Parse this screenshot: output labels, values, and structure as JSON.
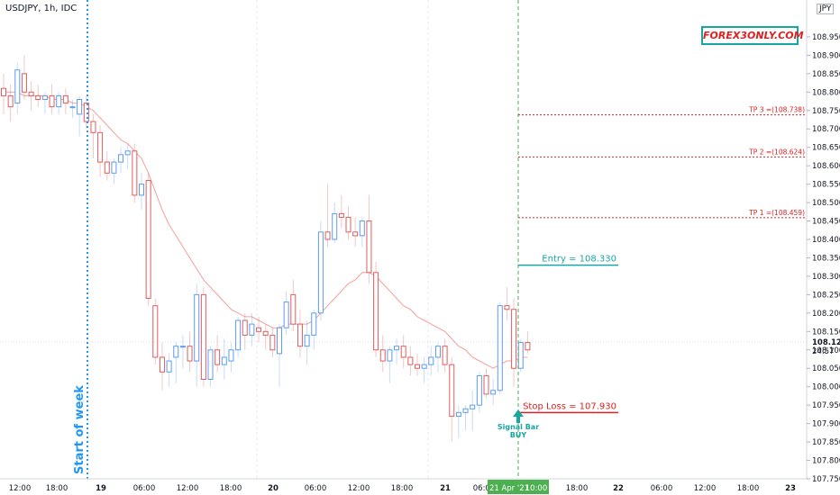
{
  "header": {
    "title": "USDJPY, 1h, IDC",
    "currency": "JPY"
  },
  "brand": "FOREX3ONLY.COM",
  "annotations": {
    "start_of_week": "Start of week",
    "entry": "Entry = 108.330",
    "stop_loss": "Stop Loss = 107.930",
    "tp3": "TP 3 =(108.738)",
    "tp2": "TP 2 =(108.624)",
    "tp1": "TP 1 =(108.459)",
    "signal_line1": "Signal Bar",
    "signal_line2": "BUY",
    "current_price": "108.122",
    "countdown": "24:57",
    "date_marker": "21 Apr '21",
    "time_marker": "10:00"
  },
  "colors": {
    "up": "#5b9cf6",
    "down": "#e05c5c",
    "entry": "#16a7a0",
    "stop": "#e02020",
    "tp": "#e02020",
    "ma": "#f4a09a",
    "start_week": "#2196f3",
    "signal": "#16a7a0"
  },
  "chart_data": {
    "type": "candlestick",
    "symbol": "USDJPY",
    "timeframe": "1h",
    "ylim": [
      107.75,
      109.05
    ],
    "yticks": [
      "108.950",
      "108.900",
      "108.850",
      "108.800",
      "108.750",
      "108.700",
      "108.650",
      "108.600",
      "108.550",
      "108.500",
      "108.450",
      "108.400",
      "108.350",
      "108.300",
      "108.250",
      "108.200",
      "108.150",
      "108.100",
      "108.050",
      "108.000",
      "107.950",
      "107.900",
      "107.850",
      "107.800",
      "107.750"
    ],
    "xticks": [
      "12:00",
      "18:00",
      "19",
      "06:00",
      "12:00",
      "18:00",
      "20",
      "06:00",
      "12:00",
      "18:00",
      "21",
      "06:00",
      "10:00",
      "18:00",
      "22",
      "06:00",
      "12:00",
      "18:00",
      "23"
    ],
    "candles": [
      {
        "o": 108.81,
        "h": 108.85,
        "l": 108.74,
        "c": 108.79
      },
      {
        "o": 108.79,
        "h": 108.82,
        "l": 108.72,
        "c": 108.76
      },
      {
        "o": 108.77,
        "h": 108.88,
        "l": 108.74,
        "c": 108.86
      },
      {
        "o": 108.85,
        "h": 108.9,
        "l": 108.78,
        "c": 108.8
      },
      {
        "o": 108.8,
        "h": 108.83,
        "l": 108.75,
        "c": 108.79
      },
      {
        "o": 108.79,
        "h": 108.82,
        "l": 108.76,
        "c": 108.78
      },
      {
        "o": 108.78,
        "h": 108.8,
        "l": 108.74,
        "c": 108.79
      },
      {
        "o": 108.79,
        "h": 108.82,
        "l": 108.74,
        "c": 108.76
      },
      {
        "o": 108.76,
        "h": 108.8,
        "l": 108.74,
        "c": 108.79
      },
      {
        "o": 108.79,
        "h": 108.81,
        "l": 108.74,
        "c": 108.77
      },
      {
        "o": 108.76,
        "h": 108.78,
        "l": 108.73,
        "c": 108.76
      },
      {
        "o": 108.74,
        "h": 108.79,
        "l": 108.68,
        "c": 108.78
      },
      {
        "o": 108.77,
        "h": 108.79,
        "l": 108.7,
        "c": 108.72
      },
      {
        "o": 108.72,
        "h": 108.74,
        "l": 108.62,
        "c": 108.69
      },
      {
        "o": 108.69,
        "h": 108.71,
        "l": 108.57,
        "c": 108.61
      },
      {
        "o": 108.61,
        "h": 108.64,
        "l": 108.56,
        "c": 108.58
      },
      {
        "o": 108.58,
        "h": 108.62,
        "l": 108.55,
        "c": 108.61
      },
      {
        "o": 108.61,
        "h": 108.65,
        "l": 108.58,
        "c": 108.63
      },
      {
        "o": 108.63,
        "h": 108.66,
        "l": 108.59,
        "c": 108.64
      },
      {
        "o": 108.64,
        "h": 108.66,
        "l": 108.5,
        "c": 108.52
      },
      {
        "o": 108.52,
        "h": 108.58,
        "l": 108.48,
        "c": 108.55
      },
      {
        "o": 108.56,
        "h": 108.58,
        "l": 108.22,
        "c": 108.24
      },
      {
        "o": 108.22,
        "h": 108.24,
        "l": 108.06,
        "c": 108.08
      },
      {
        "o": 108.08,
        "h": 108.12,
        "l": 107.99,
        "c": 108.04
      },
      {
        "o": 108.04,
        "h": 108.09,
        "l": 108.0,
        "c": 108.07
      },
      {
        "o": 108.08,
        "h": 108.12,
        "l": 108.01,
        "c": 108.11
      },
      {
        "o": 108.11,
        "h": 108.14,
        "l": 108.05,
        "c": 108.11
      },
      {
        "o": 108.11,
        "h": 108.15,
        "l": 108.04,
        "c": 108.07
      },
      {
        "o": 108.07,
        "h": 108.28,
        "l": 108.0,
        "c": 108.25
      },
      {
        "o": 108.25,
        "h": 108.27,
        "l": 108.0,
        "c": 108.02
      },
      {
        "o": 108.02,
        "h": 108.11,
        "l": 108.0,
        "c": 108.1
      },
      {
        "o": 108.1,
        "h": 108.14,
        "l": 108.04,
        "c": 108.06
      },
      {
        "o": 108.06,
        "h": 108.13,
        "l": 108.02,
        "c": 108.08
      },
      {
        "o": 108.07,
        "h": 108.12,
        "l": 108.04,
        "c": 108.1
      },
      {
        "o": 108.1,
        "h": 108.19,
        "l": 108.08,
        "c": 108.18
      },
      {
        "o": 108.18,
        "h": 108.2,
        "l": 108.1,
        "c": 108.14
      },
      {
        "o": 108.14,
        "h": 108.2,
        "l": 108.11,
        "c": 108.17
      },
      {
        "o": 108.16,
        "h": 108.19,
        "l": 108.12,
        "c": 108.15
      },
      {
        "o": 108.15,
        "h": 108.17,
        "l": 108.1,
        "c": 108.14
      },
      {
        "o": 108.14,
        "h": 108.16,
        "l": 108.08,
        "c": 108.1
      },
      {
        "o": 108.09,
        "h": 108.17,
        "l": 108.0,
        "c": 108.16
      },
      {
        "o": 108.16,
        "h": 108.26,
        "l": 108.14,
        "c": 108.23
      },
      {
        "o": 108.25,
        "h": 108.29,
        "l": 108.15,
        "c": 108.17
      },
      {
        "o": 108.17,
        "h": 108.21,
        "l": 108.08,
        "c": 108.11
      },
      {
        "o": 108.11,
        "h": 108.18,
        "l": 108.06,
        "c": 108.14
      },
      {
        "o": 108.14,
        "h": 108.21,
        "l": 108.1,
        "c": 108.2
      },
      {
        "o": 108.2,
        "h": 108.45,
        "l": 108.18,
        "c": 108.42
      },
      {
        "o": 108.42,
        "h": 108.55,
        "l": 108.38,
        "c": 108.4
      },
      {
        "o": 108.4,
        "h": 108.5,
        "l": 108.39,
        "c": 108.47
      },
      {
        "o": 108.47,
        "h": 108.52,
        "l": 108.43,
        "c": 108.46
      },
      {
        "o": 108.46,
        "h": 108.49,
        "l": 108.4,
        "c": 108.42
      },
      {
        "o": 108.42,
        "h": 108.46,
        "l": 108.38,
        "c": 108.41
      },
      {
        "o": 108.41,
        "h": 108.46,
        "l": 108.38,
        "c": 108.45
      },
      {
        "o": 108.45,
        "h": 108.52,
        "l": 108.28,
        "c": 108.31
      },
      {
        "o": 108.31,
        "h": 108.34,
        "l": 108.08,
        "c": 108.1
      },
      {
        "o": 108.1,
        "h": 108.14,
        "l": 108.04,
        "c": 108.07
      },
      {
        "o": 108.07,
        "h": 108.11,
        "l": 108.01,
        "c": 108.1
      },
      {
        "o": 108.1,
        "h": 108.13,
        "l": 108.06,
        "c": 108.11
      },
      {
        "o": 108.11,
        "h": 108.14,
        "l": 108.05,
        "c": 108.08
      },
      {
        "o": 108.08,
        "h": 108.11,
        "l": 108.03,
        "c": 108.06
      },
      {
        "o": 108.06,
        "h": 108.09,
        "l": 108.03,
        "c": 108.05
      },
      {
        "o": 108.05,
        "h": 108.08,
        "l": 108.01,
        "c": 108.06
      },
      {
        "o": 108.06,
        "h": 108.11,
        "l": 108.03,
        "c": 108.08
      },
      {
        "o": 108.08,
        "h": 108.12,
        "l": 108.04,
        "c": 108.11
      },
      {
        "o": 108.11,
        "h": 108.13,
        "l": 108.04,
        "c": 108.06
      },
      {
        "o": 108.06,
        "h": 108.08,
        "l": 107.85,
        "c": 107.92
      },
      {
        "o": 107.92,
        "h": 107.95,
        "l": 107.86,
        "c": 107.93
      },
      {
        "o": 107.93,
        "h": 107.95,
        "l": 107.88,
        "c": 107.94
      },
      {
        "o": 107.94,
        "h": 107.99,
        "l": 107.88,
        "c": 107.95
      },
      {
        "o": 107.95,
        "h": 108.04,
        "l": 107.93,
        "c": 108.03
      },
      {
        "o": 108.03,
        "h": 108.05,
        "l": 107.97,
        "c": 107.98
      },
      {
        "o": 107.98,
        "h": 108.02,
        "l": 107.95,
        "c": 107.99
      },
      {
        "o": 107.99,
        "h": 108.23,
        "l": 107.98,
        "c": 108.22
      },
      {
        "o": 108.22,
        "h": 108.27,
        "l": 108.18,
        "c": 108.21
      },
      {
        "o": 108.21,
        "h": 108.24,
        "l": 108.0,
        "c": 108.05
      },
      {
        "o": 108.05,
        "h": 108.13,
        "l": 108.04,
        "c": 108.12
      },
      {
        "o": 108.12,
        "h": 108.15,
        "l": 108.09,
        "c": 108.1
      }
    ],
    "ma": [
      108.8,
      108.8,
      108.8,
      108.79,
      108.79,
      108.79,
      108.79,
      108.78,
      108.78,
      108.78,
      108.77,
      108.77,
      108.76,
      108.75,
      108.73,
      108.71,
      108.69,
      108.67,
      108.66,
      108.64,
      108.62,
      108.58,
      108.53,
      108.48,
      108.44,
      108.41,
      108.38,
      108.35,
      108.32,
      108.29,
      108.27,
      108.25,
      108.23,
      108.21,
      108.2,
      108.19,
      108.19,
      108.18,
      108.17,
      108.16,
      108.16,
      108.17,
      108.17,
      108.17,
      108.17,
      108.18,
      108.2,
      108.22,
      108.24,
      108.26,
      108.28,
      108.29,
      108.31,
      108.31,
      108.3,
      108.28,
      108.26,
      108.24,
      108.22,
      108.21,
      108.19,
      108.18,
      108.17,
      108.16,
      108.15,
      108.13,
      108.11,
      108.1,
      108.08,
      108.07,
      108.06,
      108.05,
      108.06,
      108.07,
      108.07,
      108.08,
      108.08
    ],
    "levels": {
      "entry": 108.33,
      "stop_loss": 107.93,
      "tp1": 108.459,
      "tp2": 108.624,
      "tp3": 108.738,
      "current": 108.122
    }
  }
}
